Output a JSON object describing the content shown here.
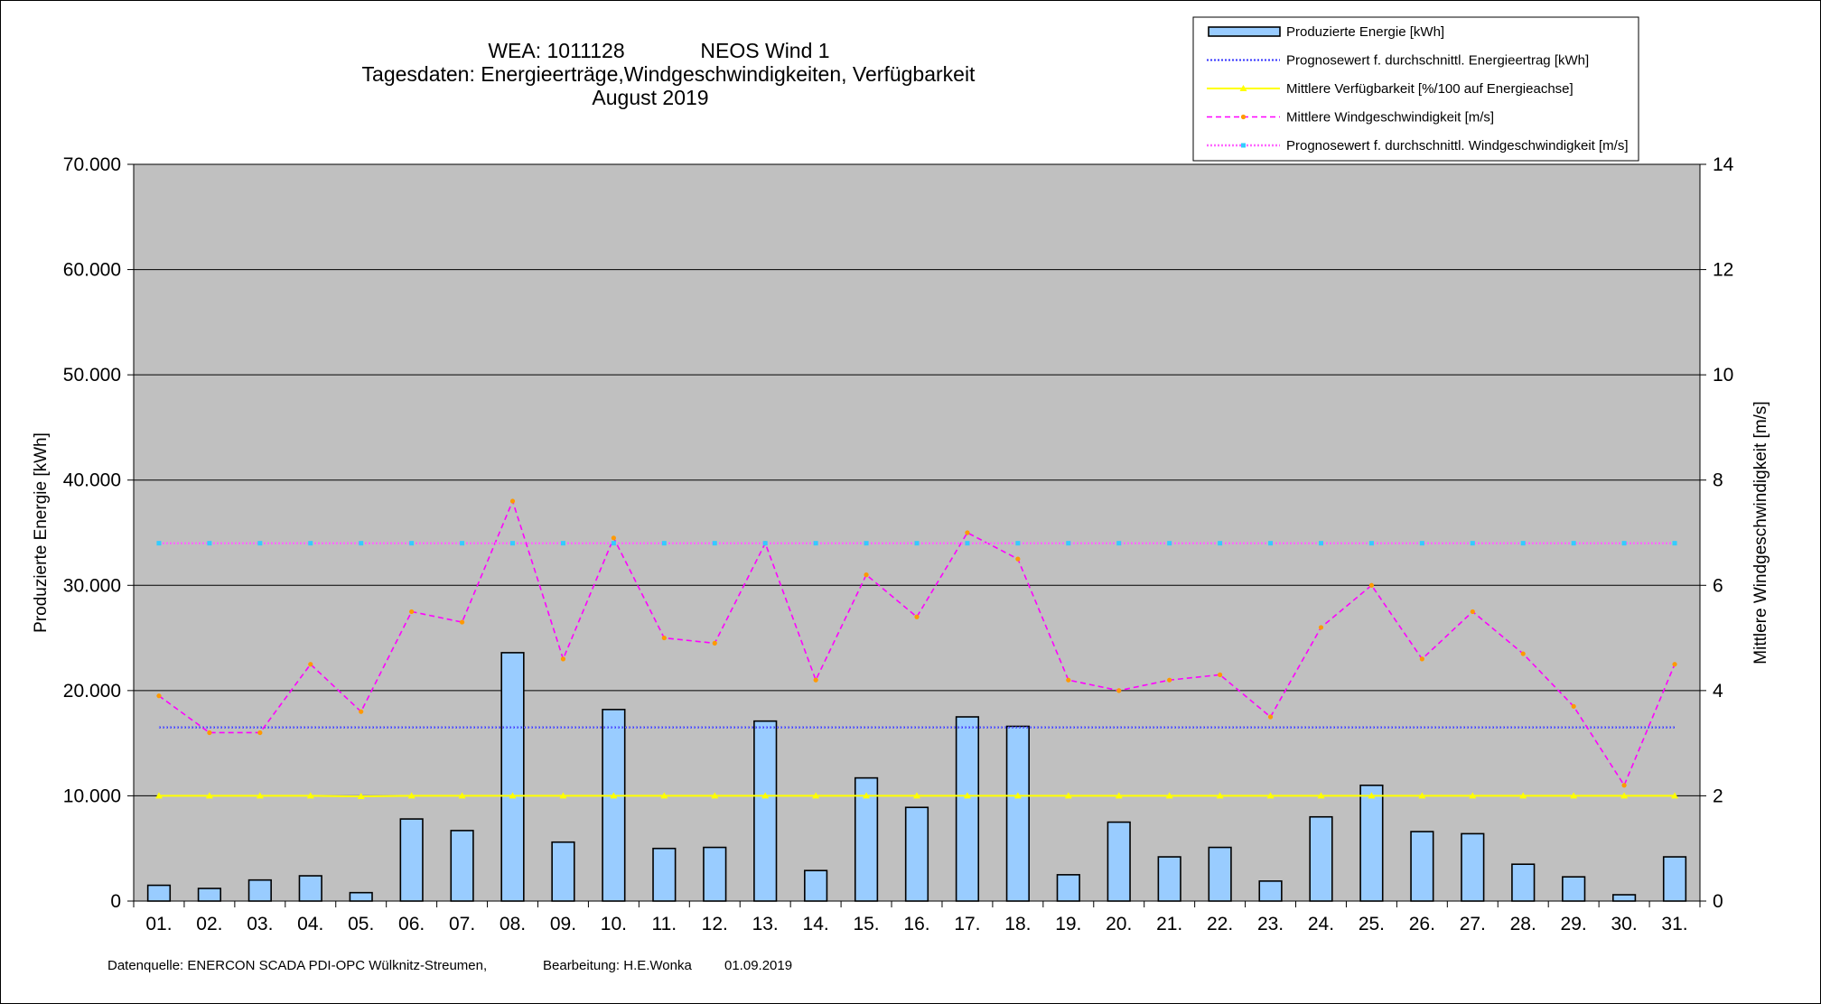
{
  "chart_data": {
    "type": "bar",
    "title_lines": [
      "WEA: 1011128",
      "NEOS Wind 1",
      "Tagesdaten:  Energieerträge,Windgeschwindigkeiten,  Verfügbarkeit",
      "August 2019"
    ],
    "ylabel": "Produzierte Energie [kWh]",
    "y2label": "Mittlere Windgeschwindigkeit [m/s]",
    "ylim": [
      0,
      70000
    ],
    "y2lim": [
      0,
      14
    ],
    "yticks": [
      "0",
      "10.000",
      "20.000",
      "30.000",
      "40.000",
      "50.000",
      "60.000",
      "70.000"
    ],
    "y2ticks": [
      "0",
      "2",
      "4",
      "6",
      "8",
      "10",
      "12",
      "14"
    ],
    "grid": true,
    "plot_background": "#c0c0c0",
    "categories": [
      "01.",
      "02.",
      "03.",
      "04.",
      "05.",
      "06.",
      "07.",
      "08.",
      "09.",
      "10.",
      "11.",
      "12.",
      "13.",
      "14.",
      "15.",
      "16.",
      "17.",
      "18.",
      "19.",
      "20.",
      "21.",
      "22.",
      "23.",
      "24.",
      "25.",
      "26.",
      "27.",
      "28.",
      "29.",
      "30.",
      "31."
    ],
    "series": [
      {
        "name": "Produzierte Energie [kWh]",
        "kind": "bar",
        "axis": "left",
        "color": "#99ccff",
        "values": [
          1500,
          1200,
          2000,
          2400,
          800,
          7800,
          6700,
          23600,
          5600,
          18200,
          5000,
          5100,
          17100,
          2900,
          11700,
          8900,
          17500,
          16600,
          2500,
          7500,
          4200,
          5100,
          1900,
          8000,
          11000,
          6600,
          6400,
          3500,
          2300,
          600,
          4200
        ]
      },
      {
        "name": "Prognosewert f. durchschnittl. Energieertrag  [kWh]",
        "kind": "line",
        "axis": "left",
        "color": "#3333ff",
        "values": [
          16500,
          16500,
          16500,
          16500,
          16500,
          16500,
          16500,
          16500,
          16500,
          16500,
          16500,
          16500,
          16500,
          16500,
          16500,
          16500,
          16500,
          16500,
          16500,
          16500,
          16500,
          16500,
          16500,
          16500,
          16500,
          16500,
          16500,
          16500,
          16500,
          16500,
          16500
        ]
      },
      {
        "name": "Mittlere Verfügbarkeit [%/100 auf Energieachse]",
        "kind": "line",
        "axis": "left",
        "color": "#ffff00",
        "values": [
          10000,
          10000,
          10000,
          10000,
          9950,
          10000,
          10000,
          10000,
          10000,
          10000,
          10000,
          10000,
          10000,
          10000,
          10000,
          10000,
          10000,
          10000,
          10000,
          10000,
          10000,
          10000,
          10000,
          10000,
          10000,
          10000,
          10000,
          10000,
          10000,
          10000,
          10000
        ]
      },
      {
        "name": "Mittlere Windgeschwindigkeit [m/s]",
        "kind": "line",
        "axis": "right",
        "color": "#ff00ff",
        "marker_color": "#ff9900",
        "values": [
          3.9,
          3.2,
          3.2,
          4.5,
          3.6,
          5.5,
          5.3,
          7.6,
          4.6,
          6.9,
          5.0,
          4.9,
          6.8,
          4.2,
          6.2,
          5.4,
          7.0,
          6.5,
          4.2,
          4.0,
          4.2,
          4.3,
          3.5,
          5.2,
          6.0,
          4.6,
          5.5,
          4.7,
          3.7,
          2.2,
          4.5
        ]
      },
      {
        "name": "Prognosewert f. durchschnittl. Windgeschwindigkeit [m/s]",
        "kind": "line",
        "axis": "right",
        "color": "#ff66ff",
        "marker_color": "#33ccff",
        "values": [
          6.8,
          6.8,
          6.8,
          6.8,
          6.8,
          6.8,
          6.8,
          6.8,
          6.8,
          6.8,
          6.8,
          6.8,
          6.8,
          6.8,
          6.8,
          6.8,
          6.8,
          6.8,
          6.8,
          6.8,
          6.8,
          6.8,
          6.8,
          6.8,
          6.8,
          6.8,
          6.8,
          6.8,
          6.8,
          6.8,
          6.8
        ]
      }
    ],
    "legend_position": "top-right"
  },
  "footer": {
    "source": "Datenquelle:  ENERCON  SCADA PDI-OPC Wülknitz-Streumen,",
    "editor": "Bearbeitung:  H.E.Wonka",
    "date": "01.09.2019"
  }
}
